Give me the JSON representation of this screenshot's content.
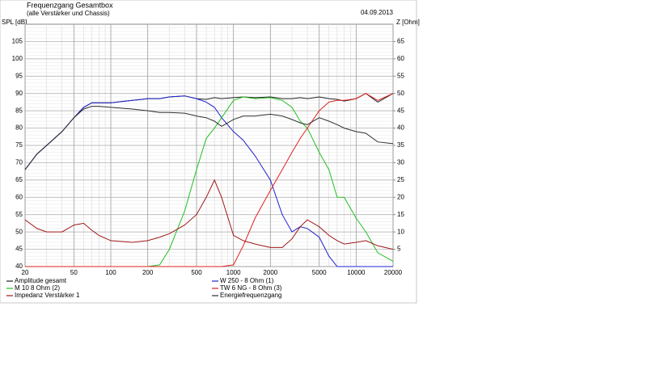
{
  "chart_data": {
    "type": "line",
    "title": "Frequenzgang Gesamtbox",
    "subtitle": "(alle Verstärker und Chassis)",
    "date": "04.09.2013",
    "ylabel": "SPL [dB]",
    "y2label": "Z [Ohm]",
    "xscale": "log",
    "grid": true,
    "x": [
      20,
      25,
      30,
      40,
      50,
      60,
      70,
      80,
      100,
      150,
      200,
      250,
      300,
      400,
      500,
      600,
      700,
      800,
      1000,
      1200,
      1500,
      2000,
      2500,
      3000,
      3500,
      4000,
      5000,
      6000,
      7000,
      8000,
      10000,
      12000,
      15000,
      20000
    ],
    "xlim": [
      20,
      20000
    ],
    "xticks": [
      20,
      50,
      100,
      200,
      500,
      1000,
      2000,
      5000,
      10000,
      20000
    ],
    "ylim": [
      40,
      110
    ],
    "yticks": [
      40,
      45,
      50,
      55,
      60,
      65,
      70,
      75,
      80,
      85,
      90,
      95,
      100,
      105
    ],
    "y2lim": [
      0,
      70
    ],
    "y2ticks": [
      5,
      10,
      15,
      20,
      25,
      30,
      35,
      40,
      45,
      50,
      55,
      60,
      65
    ],
    "series": [
      {
        "name": "Amplitude gesamt",
        "color": "#202020",
        "values": [
          68,
          72.5,
          75,
          79,
          83,
          86,
          87.3,
          87.3,
          87.3,
          88,
          88.5,
          88.5,
          89,
          89.3,
          88.5,
          88.3,
          88.8,
          88.5,
          88.8,
          89,
          88.8,
          89,
          88.5,
          88.5,
          88.8,
          88.5,
          89,
          88.5,
          88.3,
          87.8,
          88.5,
          90,
          87.5,
          90
        ]
      },
      {
        "name": "W 250 - 8 Ohm (1)",
        "color": "#2020d0",
        "values": [
          68,
          72.5,
          75,
          79,
          83,
          86,
          87.3,
          87.3,
          87.3,
          88,
          88.5,
          88.5,
          89,
          89.3,
          88.5,
          87.5,
          86,
          83,
          79,
          76.5,
          72,
          65,
          55,
          50,
          51.5,
          51,
          48.5,
          43,
          40,
          40,
          40,
          40,
          40,
          40
        ]
      },
      {
        "name": "M 10 8 Ohm (2)",
        "color": "#20c020",
        "values": [
          40,
          40,
          40,
          40,
          40,
          40,
          40,
          40,
          40,
          40,
          40,
          40.5,
          45,
          56,
          68,
          77,
          80,
          83,
          88,
          89,
          88.5,
          88.8,
          88,
          86,
          82,
          80,
          73,
          68,
          60,
          60,
          54,
          50,
          44,
          41.5
        ]
      },
      {
        "name": "TW 6 NG - 8 Ohm (3)",
        "color": "#e02020",
        "values": [
          40,
          40,
          40,
          40,
          40,
          40,
          40,
          40,
          40,
          40,
          40,
          40,
          40,
          40,
          40,
          40,
          40,
          40,
          40.5,
          46,
          54,
          62,
          68,
          73,
          77,
          80,
          85,
          87.5,
          88,
          88,
          88.5,
          90,
          88,
          90
        ]
      },
      {
        "name": "Impedanz Verstärker 1",
        "color": "#a01818",
        "axis": "y2",
        "values": [
          13.5,
          11,
          10,
          10,
          12,
          12.5,
          10.5,
          9,
          7.5,
          7,
          7.5,
          8.5,
          9.5,
          12,
          15,
          20,
          25,
          20,
          9,
          7.5,
          6.5,
          5.5,
          5.5,
          8,
          11.5,
          13.5,
          11.5,
          9,
          7.5,
          6.5,
          7,
          7.5,
          6,
          5
        ]
      },
      {
        "name": "Energiefrequenzgang",
        "color": "#303030",
        "values": [
          68,
          72.5,
          75,
          79,
          83,
          85.5,
          86.3,
          86.3,
          86,
          85.5,
          85,
          84.5,
          84.5,
          84.3,
          83.5,
          83,
          82,
          80.5,
          82.5,
          83.5,
          83.5,
          84,
          83.5,
          82.5,
          81.5,
          81,
          83,
          82,
          81,
          80,
          79,
          78.5,
          76,
          75.5
        ]
      }
    ]
  }
}
